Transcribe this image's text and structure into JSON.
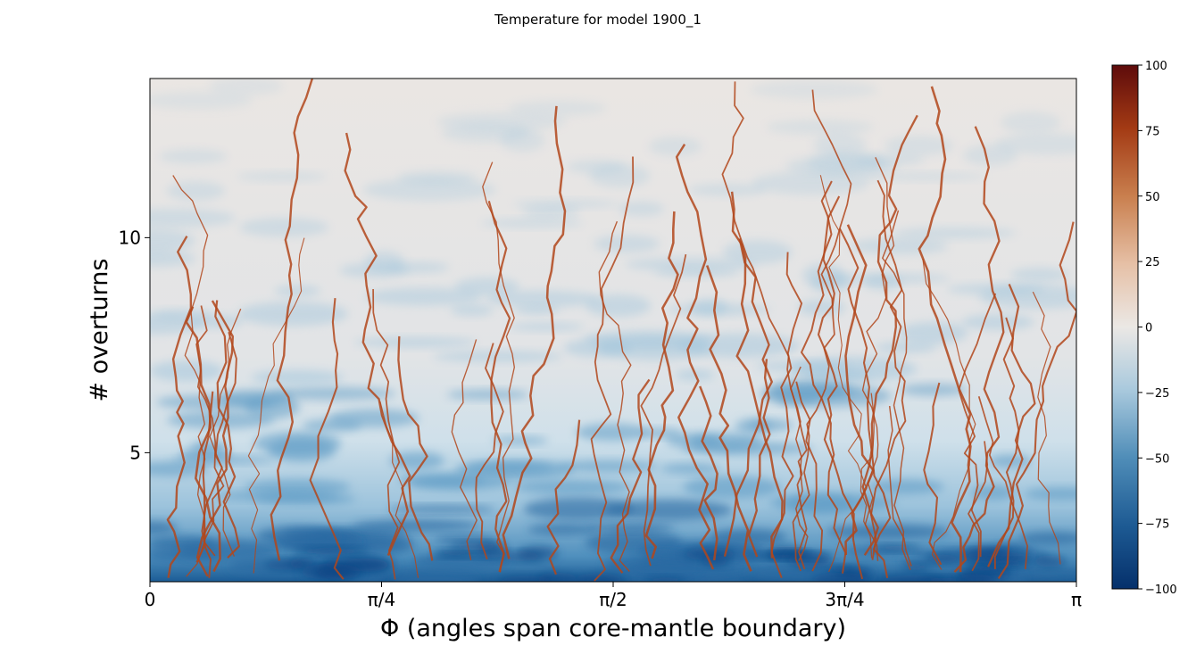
{
  "chart_data": {
    "type": "heatmap",
    "title": "Temperature for model 1900_1",
    "xlabel": "Φ (angles span core-mantle boundary)",
    "ylabel": "# overturns",
    "x_range": [
      0,
      3.14159
    ],
    "y_range": [
      2.0,
      13.7
    ],
    "x_ticks": [
      {
        "value": 0,
        "label": "0"
      },
      {
        "value": 0.7854,
        "label": "π/4"
      },
      {
        "value": 1.5708,
        "label": "π/2"
      },
      {
        "value": 2.3562,
        "label": "3π/4"
      },
      {
        "value": 3.14159,
        "label": "π"
      }
    ],
    "y_ticks": [
      {
        "value": 5,
        "label": "5"
      },
      {
        "value": 10,
        "label": "10"
      }
    ],
    "colorbar": {
      "range": [
        -100,
        100
      ],
      "colormap": "diverging blue-white-red",
      "colors": {
        "min": "#05306b",
        "mid": "#ebe8e5",
        "max": "#5e0b0b"
      },
      "ticks": [
        "100",
        "75",
        "50",
        "25",
        "0",
        "−25",
        "−50",
        "−75",
        "−100"
      ]
    },
    "features": {
      "plumes": "thin hot (red) upwelling plumes rising from the core-mantle boundary",
      "base": "cold (dark blue) layer near the bottom, overturns 2 to 5"
    }
  }
}
